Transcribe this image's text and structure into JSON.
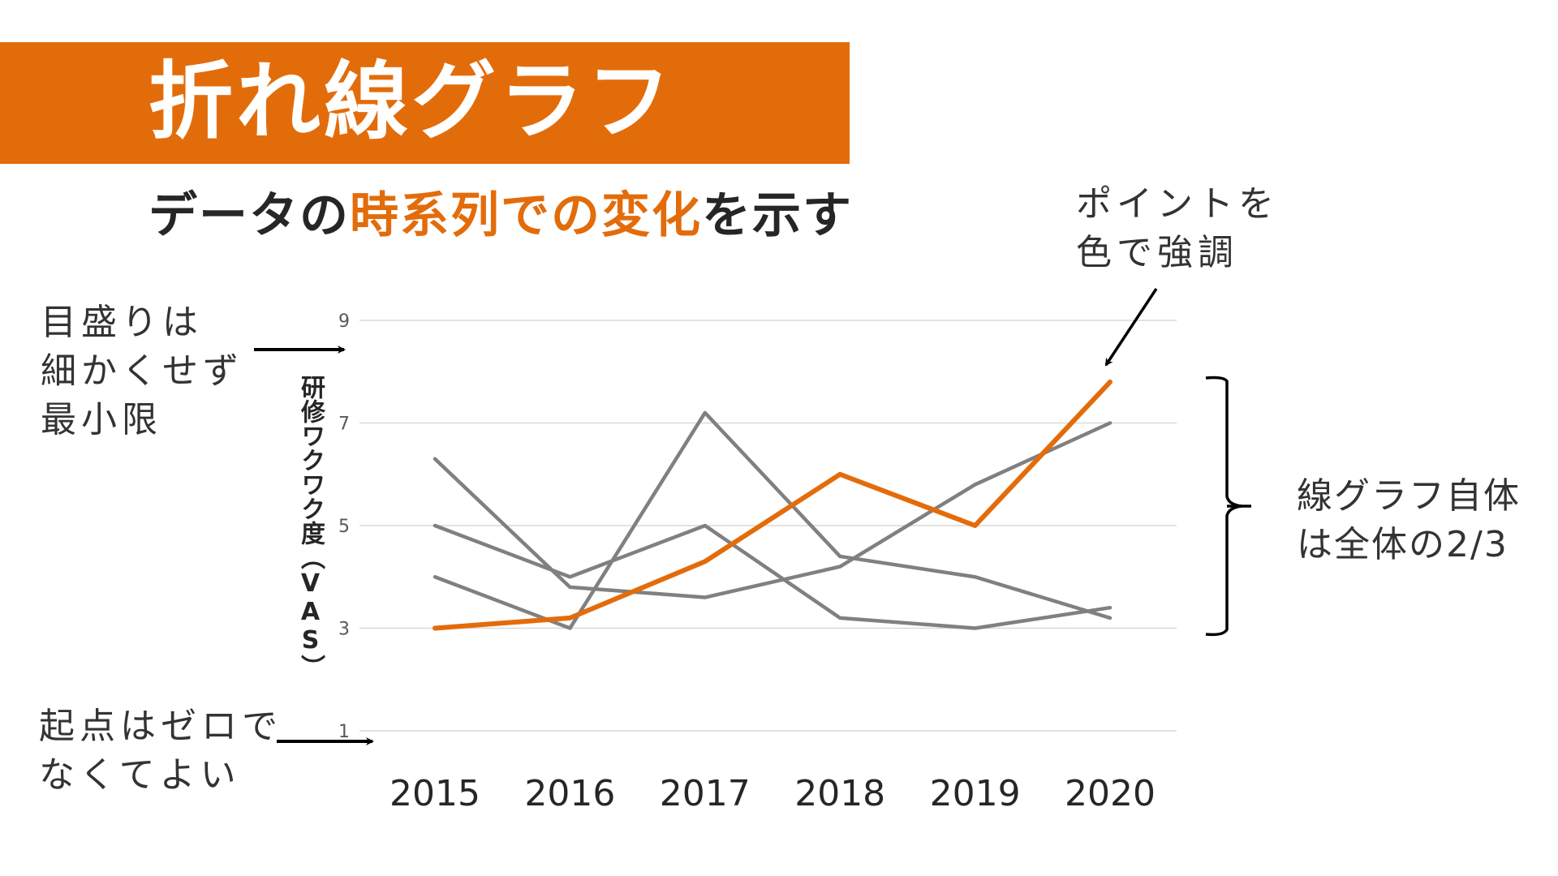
{
  "title": "折れ線グラフ",
  "subtitle": {
    "part1": "データの",
    "part2": "時系列での変化",
    "part3": "を示す"
  },
  "colors": {
    "accent": "#E36C0A",
    "highlight_line": "#E36C0A",
    "other_lines": "#808080",
    "gridline": "#D9D9D9",
    "text_dark": "#262626",
    "annotation_arrow": "#000000"
  },
  "annotations": {
    "highlight": [
      "ポイントを",
      "色で強調"
    ],
    "ticks": [
      "目盛りは",
      "細かくせず",
      "最小限"
    ],
    "origin": [
      "起点はゼロで",
      "なくてよい"
    ],
    "ratio": [
      "線グラフ自体",
      "は全体の2/3"
    ]
  },
  "chart_data": {
    "type": "line",
    "title": "",
    "xlabel": "",
    "ylabel": "研修ワクワク度（VAS）",
    "x": [
      "2015",
      "2016",
      "2017",
      "2018",
      "2019",
      "2020"
    ],
    "ylim": [
      1,
      9
    ],
    "yticks": [
      1,
      3,
      5,
      7,
      9
    ],
    "grid": true,
    "legend": "none",
    "series": [
      {
        "name": "highlighted",
        "color": "#E36C0A",
        "highlight": true,
        "values": [
          3.0,
          3.2,
          4.3,
          6.0,
          5.0,
          7.8
        ]
      },
      {
        "name": "series-a",
        "color": "#808080",
        "highlight": false,
        "values": [
          6.3,
          3.8,
          3.6,
          4.2,
          5.8,
          7.0
        ]
      },
      {
        "name": "series-b",
        "color": "#808080",
        "highlight": false,
        "values": [
          5.0,
          4.0,
          5.0,
          3.2,
          3.0,
          3.4
        ]
      },
      {
        "name": "series-c",
        "color": "#808080",
        "highlight": false,
        "values": [
          4.0,
          3.0,
          7.2,
          4.4,
          4.0,
          3.2
        ]
      }
    ]
  }
}
